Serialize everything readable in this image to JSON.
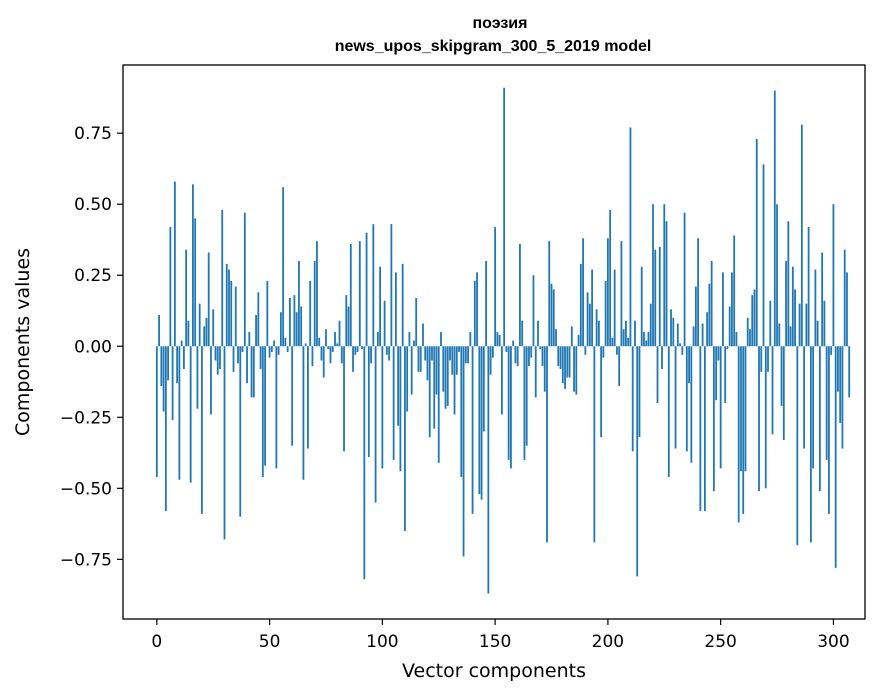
{
  "chart_data": {
    "type": "bar",
    "title": "поэзия",
    "subtitle": "news_upos_skipgram_300_5_2019 model",
    "xlabel": "Vector components",
    "ylabel": "Components values",
    "xlim": [
      -15,
      314
    ],
    "ylim": [
      -0.96,
      0.99
    ],
    "xticks": [
      0,
      50,
      100,
      150,
      200,
      250,
      300
    ],
    "xtick_labels": [
      "0",
      "50",
      "100",
      "150",
      "200",
      "250",
      "300"
    ],
    "yticks": [
      -0.75,
      -0.5,
      -0.25,
      0.0,
      0.25,
      0.5,
      0.75
    ],
    "ytick_labels": [
      "−0.75",
      "−0.50",
      "−0.25",
      "0.00",
      "0.25",
      "0.50",
      "0.75"
    ],
    "grid": false,
    "bar_color": "#1f77b4",
    "values": [
      -0.46,
      0.11,
      -0.14,
      -0.23,
      -0.58,
      -0.12,
      0.42,
      -0.26,
      0.58,
      -0.13,
      -0.47,
      0.02,
      -0.08,
      0.34,
      0.09,
      -0.48,
      0.57,
      0.45,
      -0.22,
      0.15,
      -0.59,
      0.07,
      0.1,
      0.33,
      -0.24,
      0.13,
      -0.05,
      -0.1,
      -0.08,
      0.48,
      -0.68,
      0.29,
      0.27,
      0.23,
      -0.09,
      0.21,
      -0.06,
      -0.6,
      -0.02,
      0.47,
      -0.13,
      0.05,
      -0.18,
      -0.18,
      0.11,
      0.19,
      -0.08,
      -0.46,
      -0.42,
      0.23,
      -0.04,
      -0.02,
      0.02,
      -0.43,
      -0.03,
      0.12,
      0.56,
      0.03,
      -0.02,
      0.17,
      -0.35,
      0.18,
      0.12,
      0.3,
      0.14,
      -0.47,
      0.01,
      -0.36,
      0.23,
      -0.07,
      0.3,
      0.37,
      0.03,
      -0.05,
      -0.11,
      0.06,
      -0.01,
      -0.06,
      -0.02,
      0.05,
      0.01,
      0.09,
      -0.06,
      -0.37,
      0.18,
      0.14,
      0.36,
      -0.09,
      -0.03,
      -0.02,
      0.37,
      -0.01,
      -0.82,
      0.4,
      -0.39,
      -0.06,
      0.43,
      -0.55,
      0.05,
      0.28,
      -0.43,
      0.16,
      -0.03,
      -0.05,
      0.43,
      -0.4,
      0.26,
      -0.28,
      -0.44,
      0.29,
      -0.65,
      -0.23,
      0.05,
      -0.17,
      0.02,
      0.17,
      -0.09,
      -0.09,
      0.08,
      -0.05,
      -0.12,
      -0.32,
      -0.05,
      -0.29,
      -0.17,
      -0.41,
      0.05,
      -0.16,
      -0.22,
      -0.21,
      -0.05,
      -0.1,
      -0.24,
      -0.1,
      -0.02,
      -0.46,
      -0.74,
      -0.06,
      -0.06,
      0.05,
      -0.59,
      0.23,
      0.26,
      -0.52,
      -0.54,
      -0.3,
      0.3,
      -0.87,
      -0.1,
      -0.04,
      0.42,
      0.05,
      0.04,
      -0.24,
      0.91,
      -0.02,
      -0.4,
      -0.43,
      0.02,
      -0.06,
      -0.07,
      0.36,
      0.09,
      -0.4,
      -0.35,
      -0.07,
      -0.04,
      0.25,
      -0.18,
      0.09,
      -0.01,
      -0.07,
      -0.16,
      -0.69,
      0.37,
      0.22,
      0.2,
      0.06,
      -0.07,
      -0.08,
      -0.13,
      -0.15,
      -0.11,
      -0.11,
      0.07,
      -0.16,
      -0.17,
      0.04,
      0.29,
      0.38,
      -0.03,
      0.19,
      0.15,
      0.27,
      -0.69,
      0.13,
      0.09,
      -0.32,
      -0.04,
      0.23,
      0.38,
      0.48,
      0.03,
      0.27,
      -0.03,
      -0.14,
      0.37,
      0.06,
      0.09,
      0.03,
      0.77,
      -0.37,
      0.09,
      -0.81,
      -0.32,
      0.28,
      0.05,
      0.02,
      0.05,
      0.15,
      0.5,
      0.34,
      -0.2,
      0.35,
      -0.08,
      0.5,
      0.44,
      -0.46,
      0.13,
      0.1,
      -0.36,
      0.08,
      0.01,
      -0.03,
      0.47,
      -0.37,
      -0.13,
      -0.41,
      0.07,
      0.21,
      0.38,
      -0.58,
      0.08,
      -0.58,
      0.12,
      0.22,
      0.3,
      -0.51,
      -0.19,
      -0.05,
      -0.43,
      0.26,
      -0.2,
      -0.01,
      0.14,
      0.26,
      0.39,
      0.05,
      -0.62,
      -0.44,
      -0.59,
      -0.44,
      0.1,
      0.06,
      0.18,
      0.2,
      0.73,
      -0.51,
      -0.09,
      0.64,
      -0.5,
      -0.09,
      0.16,
      -0.31,
      0.9,
      0.5,
      0.08,
      -0.21,
      -0.33,
      0.3,
      0.44,
      0.07,
      0.28,
      0.2,
      -0.7,
      0.15,
      0.78,
      -0.36,
      0.15,
      0.42,
      -0.69,
      -0.43,
      0.27,
      0.09,
      -0.51,
      0.33,
      0.16,
      -0.4,
      -0.59,
      -0.03,
      0.5,
      -0.78,
      -0.16,
      -0.27,
      -0.36,
      0.34,
      0.26,
      -0.18
    ]
  }
}
